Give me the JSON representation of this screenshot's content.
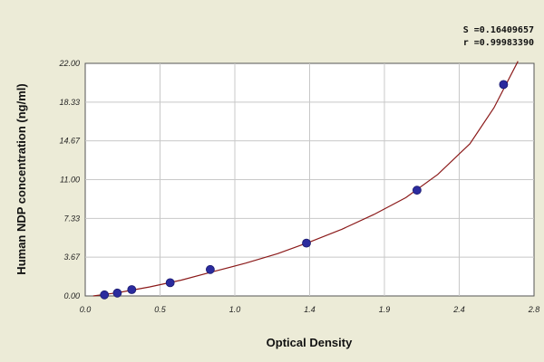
{
  "chart_data": {
    "type": "scatter",
    "title": "",
    "xlabel": "Optical Density",
    "ylabel": "Human NDP concentration (ng/ml)",
    "xlim": [
      0,
      2.8
    ],
    "ylim": [
      0,
      22
    ],
    "x_ticks": [
      "0.0",
      "0.5",
      "1.0",
      "1.4",
      "1.9",
      "2.4",
      "2.8"
    ],
    "y_ticks": [
      "0.00",
      "3.67",
      "7.33",
      "11.00",
      "14.67",
      "18.33",
      "22.00"
    ],
    "grid": true,
    "annotations": [
      "S =0.16409657",
      "r =0.99983390"
    ],
    "colors": {
      "points": "#2b2b9e",
      "curve": "#8b1a1a",
      "grid": "#c8c8c8",
      "background": "#ffffff"
    },
    "series": [
      {
        "x": [
          0.12,
          0.2,
          0.29,
          0.53,
          0.78,
          1.38,
          2.07,
          2.61
        ],
        "y": [
          0.1,
          0.27,
          0.6,
          1.25,
          2.5,
          5.0,
          10.0,
          20.0
        ]
      }
    ],
    "fit_curve": {
      "x": [
        0.05,
        0.2,
        0.4,
        0.6,
        0.8,
        1.0,
        1.2,
        1.4,
        1.6,
        1.8,
        2.0,
        2.2,
        2.4,
        2.55,
        2.7
      ],
      "y": [
        0.0,
        0.3,
        0.85,
        1.5,
        2.3,
        3.1,
        4.0,
        5.1,
        6.3,
        7.7,
        9.3,
        11.5,
        14.4,
        17.8,
        22.2
      ]
    }
  }
}
